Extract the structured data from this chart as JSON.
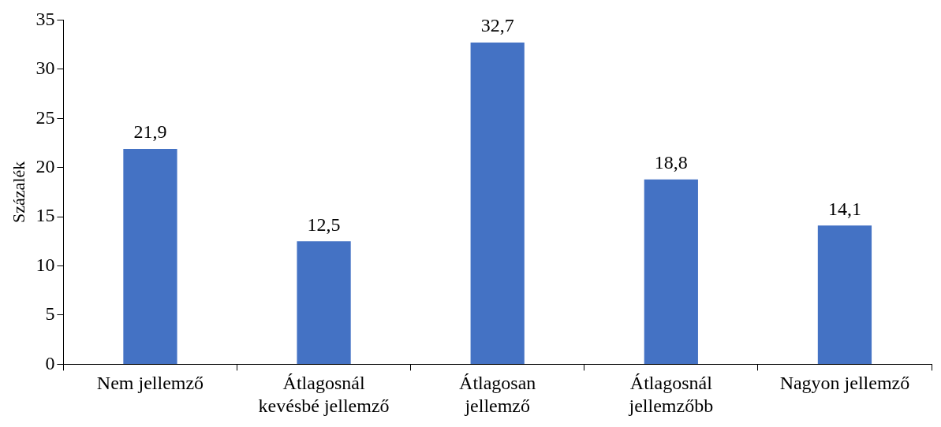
{
  "chart_data": {
    "type": "bar",
    "ylabel": "Százalék",
    "categories": [
      "Nem jellemző",
      "Átlagosnál kevésbé jellemző",
      "Átlagosan jellemző",
      "Átlagosnál jellemzőbb",
      "Nagyon jellemző"
    ],
    "values": [
      21.9,
      12.5,
      32.7,
      18.8,
      14.1
    ],
    "color": "#4472c4",
    "ylim": [
      0,
      35
    ],
    "yticks": [
      0,
      5,
      10,
      15,
      20,
      25,
      30,
      35
    ],
    "grid": false,
    "legend": false,
    "value_labels": [
      "21,9",
      "12,5",
      "32,7",
      "18,8",
      "14,1"
    ]
  }
}
